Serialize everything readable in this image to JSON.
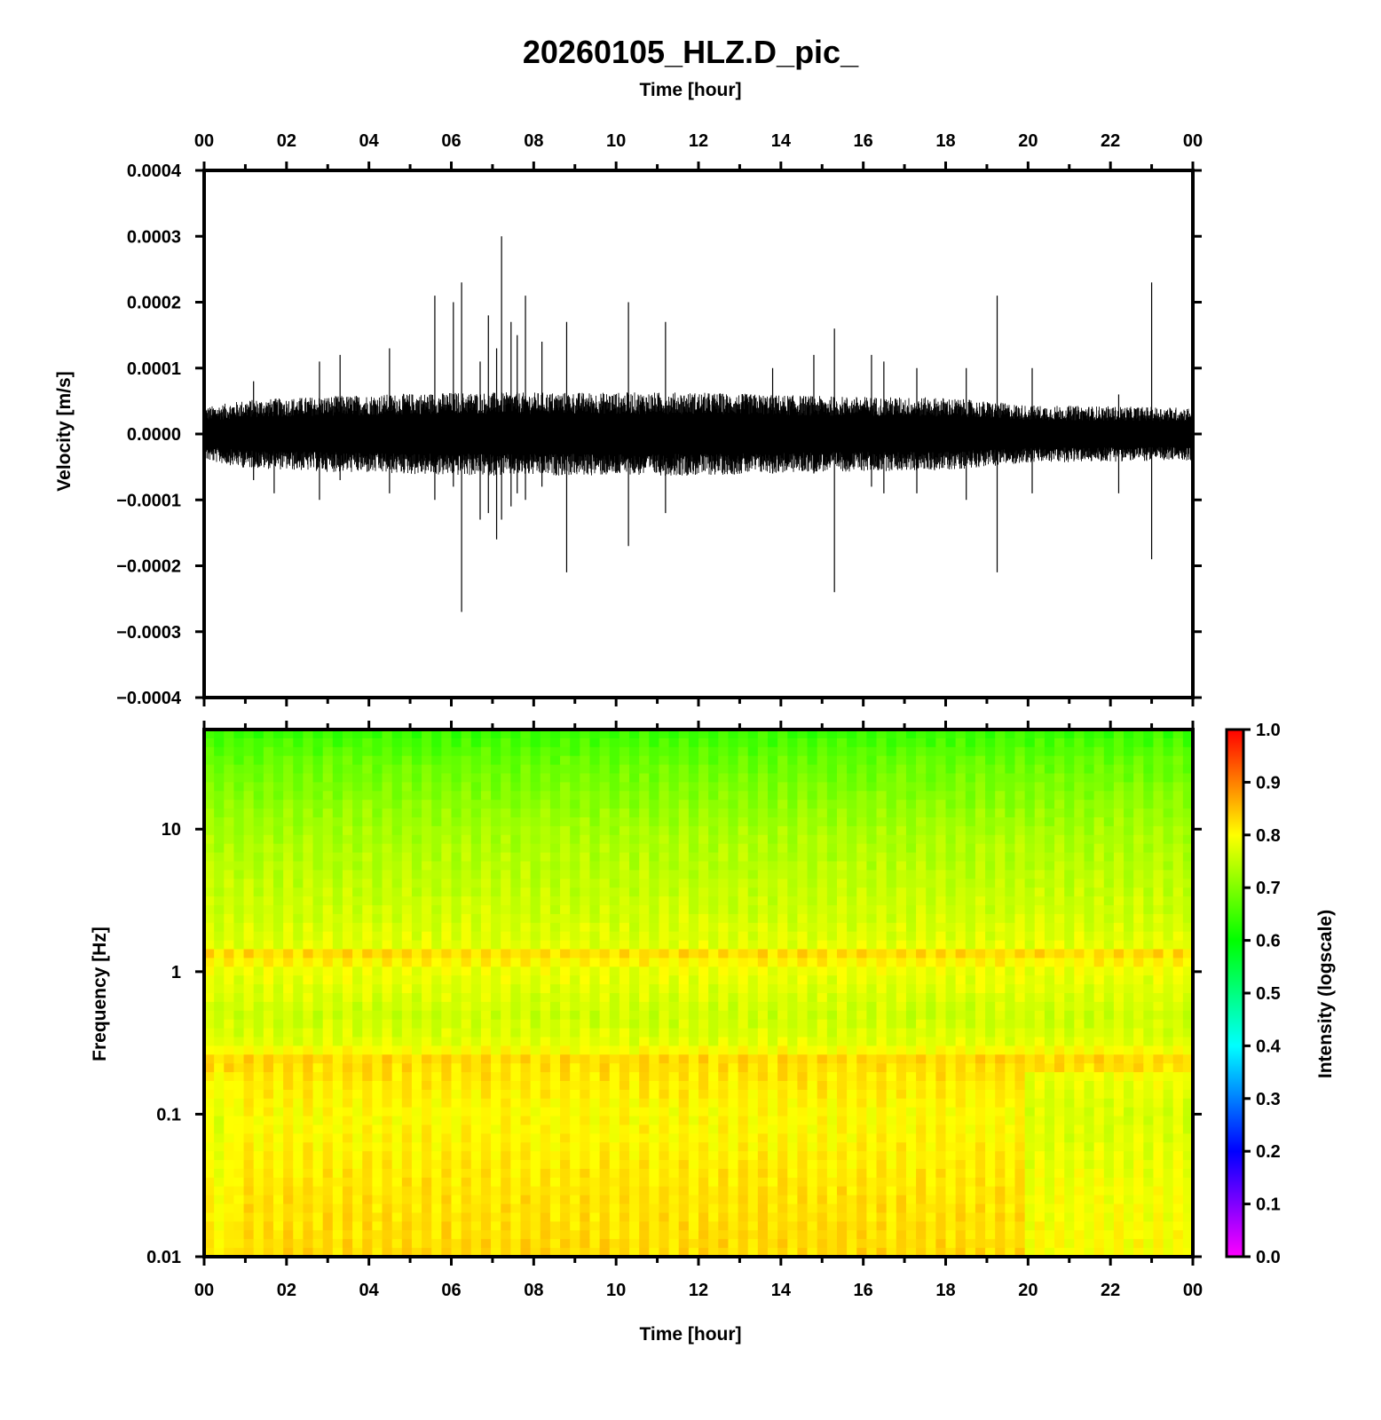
{
  "title": "20260105_HLZ.D_pic_",
  "chart_data": [
    {
      "type": "line",
      "panel": "waveform",
      "title": "20260105_HLZ.D_pic_",
      "xlabel_top": "Time [hour]",
      "ylabel": "Velocity [m/s]",
      "x_unit": "hour",
      "xlim": [
        0,
        24
      ],
      "ylim": [
        -0.0004,
        0.0004
      ],
      "x_tick_labels": [
        "00",
        "02",
        "04",
        "06",
        "08",
        "10",
        "12",
        "14",
        "16",
        "18",
        "20",
        "22",
        "00"
      ],
      "y_tick_labels": [
        "0.0004",
        "0.0003",
        "0.0002",
        "0.0001",
        "0.0000",
        "−0.0001",
        "−0.0002",
        "−0.0003",
        "−0.0004"
      ],
      "y_ticks": [
        0.0004,
        0.0003,
        0.0002,
        0.0001,
        0.0,
        -0.0001,
        -0.0002,
        -0.0003,
        -0.0004
      ],
      "noise_band_amplitude": [
        [
          0,
          3.5e-05
        ],
        [
          1,
          4.5e-05
        ],
        [
          3,
          5e-05
        ],
        [
          6,
          5.5e-05
        ],
        [
          9,
          5.5e-05
        ],
        [
          12,
          5.5e-05
        ],
        [
          15,
          5e-05
        ],
        [
          18,
          4.8e-05
        ],
        [
          20,
          3.8e-05
        ],
        [
          24,
          3.5e-05
        ]
      ],
      "spikes": [
        {
          "x": 1.2,
          "up": 8e-05,
          "down": -7e-05
        },
        {
          "x": 1.7,
          "up": 5e-05,
          "down": -9e-05
        },
        {
          "x": 2.8,
          "up": 0.00011,
          "down": -0.0001
        },
        {
          "x": 3.3,
          "up": 0.00012,
          "down": -7e-05
        },
        {
          "x": 4.5,
          "up": 0.00013,
          "down": -9e-05
        },
        {
          "x": 5.6,
          "up": 0.00021,
          "down": -0.0001
        },
        {
          "x": 6.05,
          "up": 0.0002,
          "down": -8e-05
        },
        {
          "x": 6.25,
          "up": 0.00023,
          "down": -0.00027
        },
        {
          "x": 6.7,
          "up": 0.00011,
          "down": -0.00013
        },
        {
          "x": 6.9,
          "up": 0.00018,
          "down": -0.00012
        },
        {
          "x": 7.1,
          "up": 0.00013,
          "down": -0.00016
        },
        {
          "x": 7.22,
          "up": 0.0003,
          "down": -0.00013
        },
        {
          "x": 7.45,
          "up": 0.00017,
          "down": -0.00011
        },
        {
          "x": 7.6,
          "up": 0.00015,
          "down": -9e-05
        },
        {
          "x": 7.8,
          "up": 0.00021,
          "down": -0.0001
        },
        {
          "x": 8.2,
          "up": 0.00014,
          "down": -8e-05
        },
        {
          "x": 8.8,
          "up": 0.00017,
          "down": -0.00021
        },
        {
          "x": 10.3,
          "up": 0.0002,
          "down": -0.00017
        },
        {
          "x": 11.2,
          "up": 0.00017,
          "down": -0.00012
        },
        {
          "x": 13.8,
          "up": 0.0001,
          "down": -6e-05
        },
        {
          "x": 14.8,
          "up": 0.00012,
          "down": -6e-05
        },
        {
          "x": 15.3,
          "up": 0.00016,
          "down": -0.00024
        },
        {
          "x": 16.2,
          "up": 0.00012,
          "down": -8e-05
        },
        {
          "x": 16.5,
          "up": 0.00011,
          "down": -9e-05
        },
        {
          "x": 17.3,
          "up": 0.0001,
          "down": -9e-05
        },
        {
          "x": 18.5,
          "up": 0.0001,
          "down": -0.0001
        },
        {
          "x": 19.25,
          "up": 0.00021,
          "down": -0.00021
        },
        {
          "x": 20.1,
          "up": 0.0001,
          "down": -9e-05
        },
        {
          "x": 22.2,
          "up": 6e-05,
          "down": -9e-05
        },
        {
          "x": 23.0,
          "up": 0.00023,
          "down": -0.00019
        }
      ]
    },
    {
      "type": "heatmap",
      "panel": "spectrogram",
      "xlabel": "Time [hour]",
      "ylabel": "Frequency [Hz]",
      "x_unit": "hour",
      "xlim": [
        0,
        24
      ],
      "ylim": [
        0.01,
        50
      ],
      "y_scale": "log",
      "x_tick_labels": [
        "00",
        "02",
        "04",
        "06",
        "08",
        "10",
        "12",
        "14",
        "16",
        "18",
        "20",
        "22",
        "00"
      ],
      "y_tick_labels": [
        "10",
        "1",
        "0.1",
        "0.01"
      ],
      "y_ticks": [
        10,
        1,
        0.1,
        0.01
      ],
      "colorbar": {
        "label": "Intensity (logscale)",
        "range": [
          0.0,
          1.0
        ],
        "tick_labels": [
          "1.0",
          "0.9",
          "0.8",
          "0.7",
          "0.6",
          "0.5",
          "0.4",
          "0.3",
          "0.2",
          "0.1",
          "0.0"
        ],
        "colormap": [
          "#ff00ff",
          "#0000ff",
          "#00ffff",
          "#00ff00",
          "#ffff00",
          "#ff0000"
        ]
      },
      "intensity_profile_by_frequency": [
        {
          "freq": 50,
          "intensity": 0.64
        },
        {
          "freq": 30,
          "intensity": 0.68
        },
        {
          "freq": 10,
          "intensity": 0.73
        },
        {
          "freq": 3,
          "intensity": 0.76
        },
        {
          "freq": 1.5,
          "intensity": 0.78
        },
        {
          "freq": 1.3,
          "intensity": 0.84
        },
        {
          "freq": 1.1,
          "intensity": 0.79
        },
        {
          "freq": 0.5,
          "intensity": 0.76
        },
        {
          "freq": 0.3,
          "intensity": 0.78
        },
        {
          "freq": 0.25,
          "intensity": 0.83
        },
        {
          "freq": 0.1,
          "intensity": 0.8
        },
        {
          "freq": 0.03,
          "intensity": 0.82
        },
        {
          "freq": 0.01,
          "intensity": 0.83
        }
      ],
      "low_freq_band_end_hour": 19.8
    }
  ]
}
